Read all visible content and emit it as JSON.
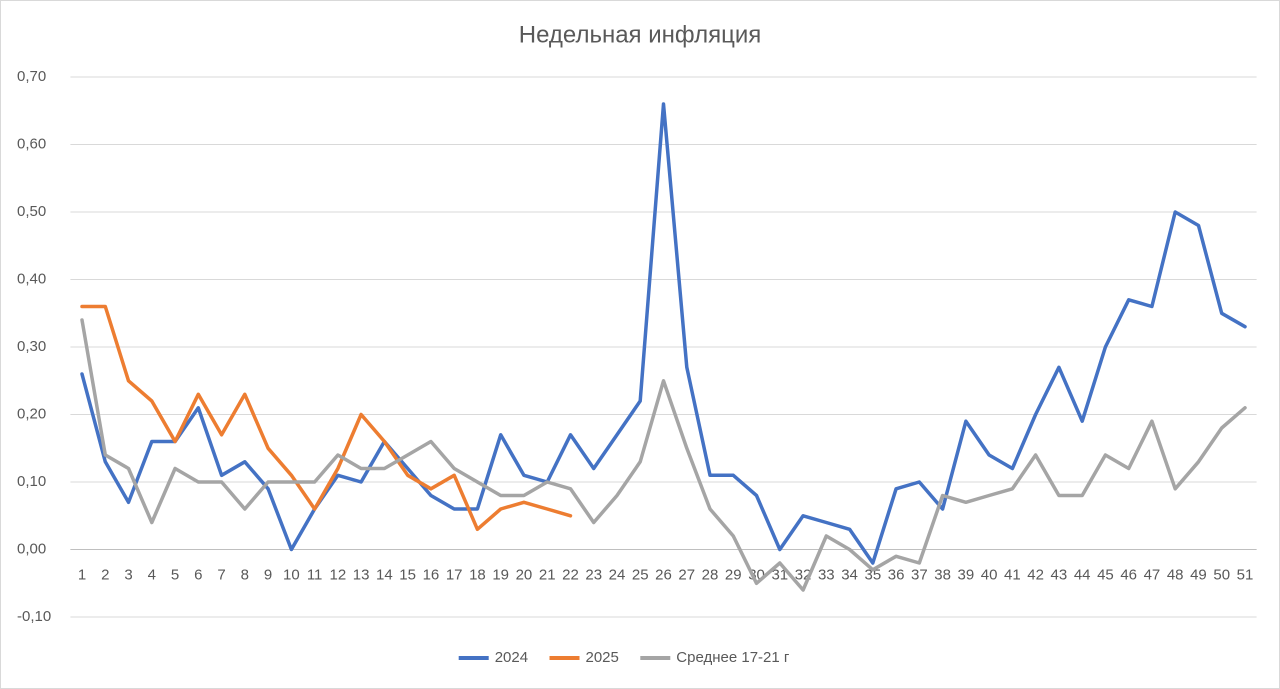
{
  "chart_data": {
    "type": "line",
    "title": "Недельная инфляция",
    "categories": [
      "1",
      "2",
      "3",
      "4",
      "5",
      "6",
      "7",
      "8",
      "9",
      "10",
      "11",
      "12",
      "13",
      "14",
      "15",
      "16",
      "17",
      "18",
      "19",
      "20",
      "21",
      "22",
      "23",
      "24",
      "25",
      "26",
      "27",
      "28",
      "29",
      "30",
      "31",
      "32",
      "33",
      "34",
      "35",
      "36",
      "37",
      "38",
      "39",
      "40",
      "41",
      "42",
      "43",
      "44",
      "45",
      "46",
      "47",
      "48",
      "49",
      "50",
      "51"
    ],
    "series": [
      {
        "name": "2024",
        "color": "#4472c4",
        "values": [
          0.26,
          0.13,
          0.07,
          0.16,
          0.16,
          0.21,
          0.11,
          0.13,
          0.09,
          0.0,
          0.06,
          0.11,
          0.1,
          0.16,
          0.12,
          0.08,
          0.06,
          0.06,
          0.17,
          0.11,
          0.1,
          0.17,
          0.12,
          0.17,
          0.22,
          0.66,
          0.27,
          0.11,
          0.11,
          0.08,
          0.0,
          0.05,
          0.04,
          0.03,
          -0.02,
          0.09,
          0.1,
          0.06,
          0.19,
          0.14,
          0.12,
          0.2,
          0.27,
          0.19,
          0.3,
          0.37,
          0.36,
          0.5,
          0.48,
          0.35,
          0.33
        ]
      },
      {
        "name": "2025",
        "color": "#ed7d31",
        "values": [
          0.36,
          0.36,
          0.25,
          0.22,
          0.16,
          0.23,
          0.17,
          0.23,
          0.15,
          0.11,
          0.06,
          0.12,
          0.2,
          0.16,
          0.11,
          0.09,
          0.11,
          0.03,
          0.06,
          0.07,
          0.06,
          0.05,
          null,
          null,
          null,
          null,
          null,
          null,
          null,
          null,
          null,
          null,
          null,
          null,
          null,
          null,
          null,
          null,
          null,
          null,
          null,
          null,
          null,
          null,
          null,
          null,
          null,
          null,
          null,
          null,
          null
        ]
      },
      {
        "name": "Среднее 17-21 г",
        "color": "#a5a5a5",
        "values": [
          0.34,
          0.14,
          0.12,
          0.04,
          0.12,
          0.1,
          0.1,
          0.06,
          0.1,
          0.1,
          0.1,
          0.14,
          0.12,
          0.12,
          0.14,
          0.16,
          0.12,
          0.1,
          0.08,
          0.08,
          0.1,
          0.09,
          0.04,
          0.08,
          0.13,
          0.25,
          0.15,
          0.06,
          0.02,
          -0.05,
          -0.02,
          -0.06,
          0.02,
          0.0,
          -0.03,
          -0.01,
          -0.02,
          0.08,
          0.07,
          0.08,
          0.09,
          0.14,
          0.08,
          0.08,
          0.14,
          0.12,
          0.19,
          0.09,
          0.13,
          0.18,
          0.21
        ]
      }
    ],
    "ylim": [
      -0.1,
      0.7
    ],
    "yticks": [
      {
        "value": -0.1,
        "label": "-0,10"
      },
      {
        "value": 0,
        "label": "0,00"
      },
      {
        "value": 0.1,
        "label": "0,10"
      },
      {
        "value": 0.2,
        "label": "0,20"
      },
      {
        "value": 0.3,
        "label": "0,30"
      },
      {
        "value": 0.4,
        "label": "0,40"
      },
      {
        "value": 0.5,
        "label": "0,50"
      },
      {
        "value": 0.6,
        "label": "0,60"
      },
      {
        "value": 0.7,
        "label": "0,70"
      }
    ],
    "grid": true,
    "legend": "bottom"
  }
}
